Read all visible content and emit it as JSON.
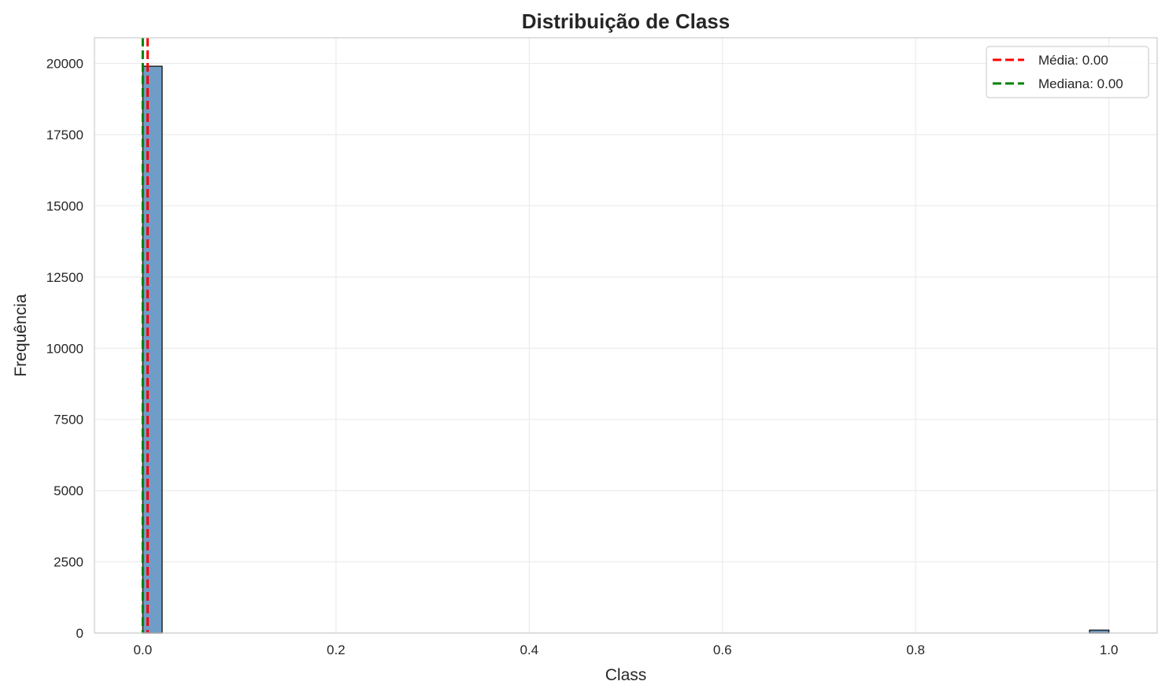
{
  "chart_data": {
    "type": "bar",
    "title": "Distribuição de Class",
    "xlabel": "Class",
    "ylabel": "Frequência",
    "xlim": [
      -0.05,
      1.05
    ],
    "ylim": [
      0,
      20900
    ],
    "xticks": [
      0.0,
      0.2,
      0.4,
      0.6,
      0.8,
      1.0
    ],
    "xtick_labels": [
      "0.0",
      "0.2",
      "0.4",
      "0.6",
      "0.8",
      "1.0"
    ],
    "yticks": [
      0,
      2500,
      5000,
      7500,
      10000,
      12500,
      15000,
      17500,
      20000
    ],
    "ytick_labels": [
      "0",
      "2500",
      "5000",
      "7500",
      "10000",
      "12500",
      "15000",
      "17500",
      "20000"
    ],
    "bin_width": 0.02,
    "bins": [
      {
        "x0": 0.0,
        "x1": 0.02,
        "count": 19900
      },
      {
        "x0": 0.98,
        "x1": 1.0,
        "count": 100
      }
    ],
    "bar_color": "#6f9dc8",
    "bar_edge_color": "#262626",
    "grid": true,
    "legend_position": "top-right",
    "reference_lines": [
      {
        "label": "Média: 0.00",
        "value": 0.005,
        "color": "#ff0000",
        "style": "dashed"
      },
      {
        "label": "Mediana: 0.00",
        "value": 0.0,
        "color": "#008000",
        "style": "dashed"
      }
    ]
  }
}
